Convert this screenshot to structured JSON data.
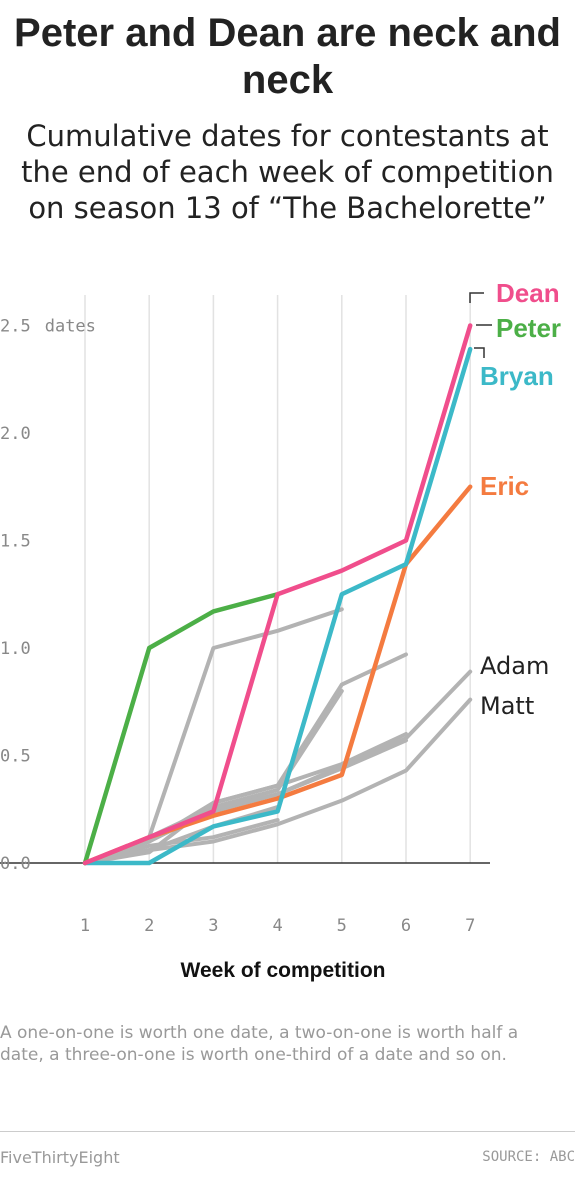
{
  "header": {
    "title": "Peter and Dean are neck and neck",
    "subtitle": "Cumulative dates for contestants at the end of each week of competition on season 13 of “The Bachelorette”"
  },
  "footer": {
    "note": "A one-on-one is worth one date, a two-on-one is worth half a date, a three-on-one is worth one-third of a date and so on.",
    "brand": "FiveThirtyEight",
    "source": "SOURCE: ABC"
  },
  "chart_data": {
    "type": "line",
    "xlabel": "Week of competition",
    "x": [
      1,
      2,
      3,
      4,
      5,
      6,
      7
    ],
    "x_tick_labels": [
      "1",
      "2",
      "3",
      "4",
      "5",
      "6",
      "7"
    ],
    "ylim": [
      0,
      2.6
    ],
    "y_ticks": [
      0,
      0.5,
      1.0,
      1.5,
      2.0,
      2.5
    ],
    "y_tick_labels": [
      "0.0",
      "0.5",
      "1.0",
      "1.5",
      "2.0",
      "2.5"
    ],
    "y_unit_label": "dates",
    "grid": "vertical",
    "series": [
      {
        "name": "",
        "color": "#b3b3b3",
        "highlight": false,
        "values": [
          0,
          0.12,
          1.0,
          1.08,
          1.18,
          null,
          null
        ]
      },
      {
        "name": "",
        "color": "#b3b3b3",
        "highlight": false,
        "values": [
          0,
          0.1,
          0.28,
          0.36,
          0.83,
          0.97,
          null
        ]
      },
      {
        "name": "",
        "color": "#b3b3b3",
        "highlight": false,
        "values": [
          0,
          0.12,
          0.26,
          0.34,
          0.8,
          null,
          null
        ]
      },
      {
        "name": "",
        "color": "#b3b3b3",
        "highlight": false,
        "values": [
          0,
          0.05,
          0.28,
          0.36,
          0.46,
          0.6,
          null
        ]
      },
      {
        "name": "",
        "color": "#b3b3b3",
        "highlight": false,
        "values": [
          0,
          0.08,
          0.12,
          0.2,
          null,
          null,
          null
        ]
      },
      {
        "name": "",
        "color": "#b3b3b3",
        "highlight": false,
        "values": [
          0,
          0.12,
          0.24,
          0.32,
          0.44,
          0.57,
          null
        ]
      },
      {
        "name": "",
        "color": "#b3b3b3",
        "highlight": false,
        "values": [
          0,
          0.06,
          0.17,
          0.26,
          null,
          null,
          null
        ]
      },
      {
        "name": "Adam",
        "color": "#b3b3b3",
        "highlight": false,
        "values": [
          0,
          0.1,
          0.25,
          0.32,
          0.45,
          0.58,
          0.89
        ]
      },
      {
        "name": "Matt",
        "color": "#b3b3b3",
        "highlight": false,
        "values": [
          0,
          0.06,
          0.1,
          0.18,
          0.29,
          0.43,
          0.76
        ]
      },
      {
        "name": "Eric",
        "color": "#f47b40",
        "highlight": true,
        "values": [
          0,
          0.12,
          0.22,
          0.3,
          0.41,
          1.39,
          1.75
        ]
      },
      {
        "name": "Bryan",
        "color": "#3cb9c8",
        "highlight": true,
        "values": [
          0,
          0,
          0.17,
          0.24,
          1.25,
          1.39,
          2.39
        ]
      },
      {
        "name": "Peter",
        "color": "#4caf47",
        "highlight": true,
        "values": [
          0,
          1.0,
          1.17,
          1.25,
          null,
          null,
          null
        ]
      },
      {
        "name": "Dean",
        "color": "#f04e8c",
        "highlight": true,
        "values": [
          0,
          0.12,
          0.24,
          1.25,
          1.36,
          1.5,
          2.5
        ]
      }
    ]
  }
}
